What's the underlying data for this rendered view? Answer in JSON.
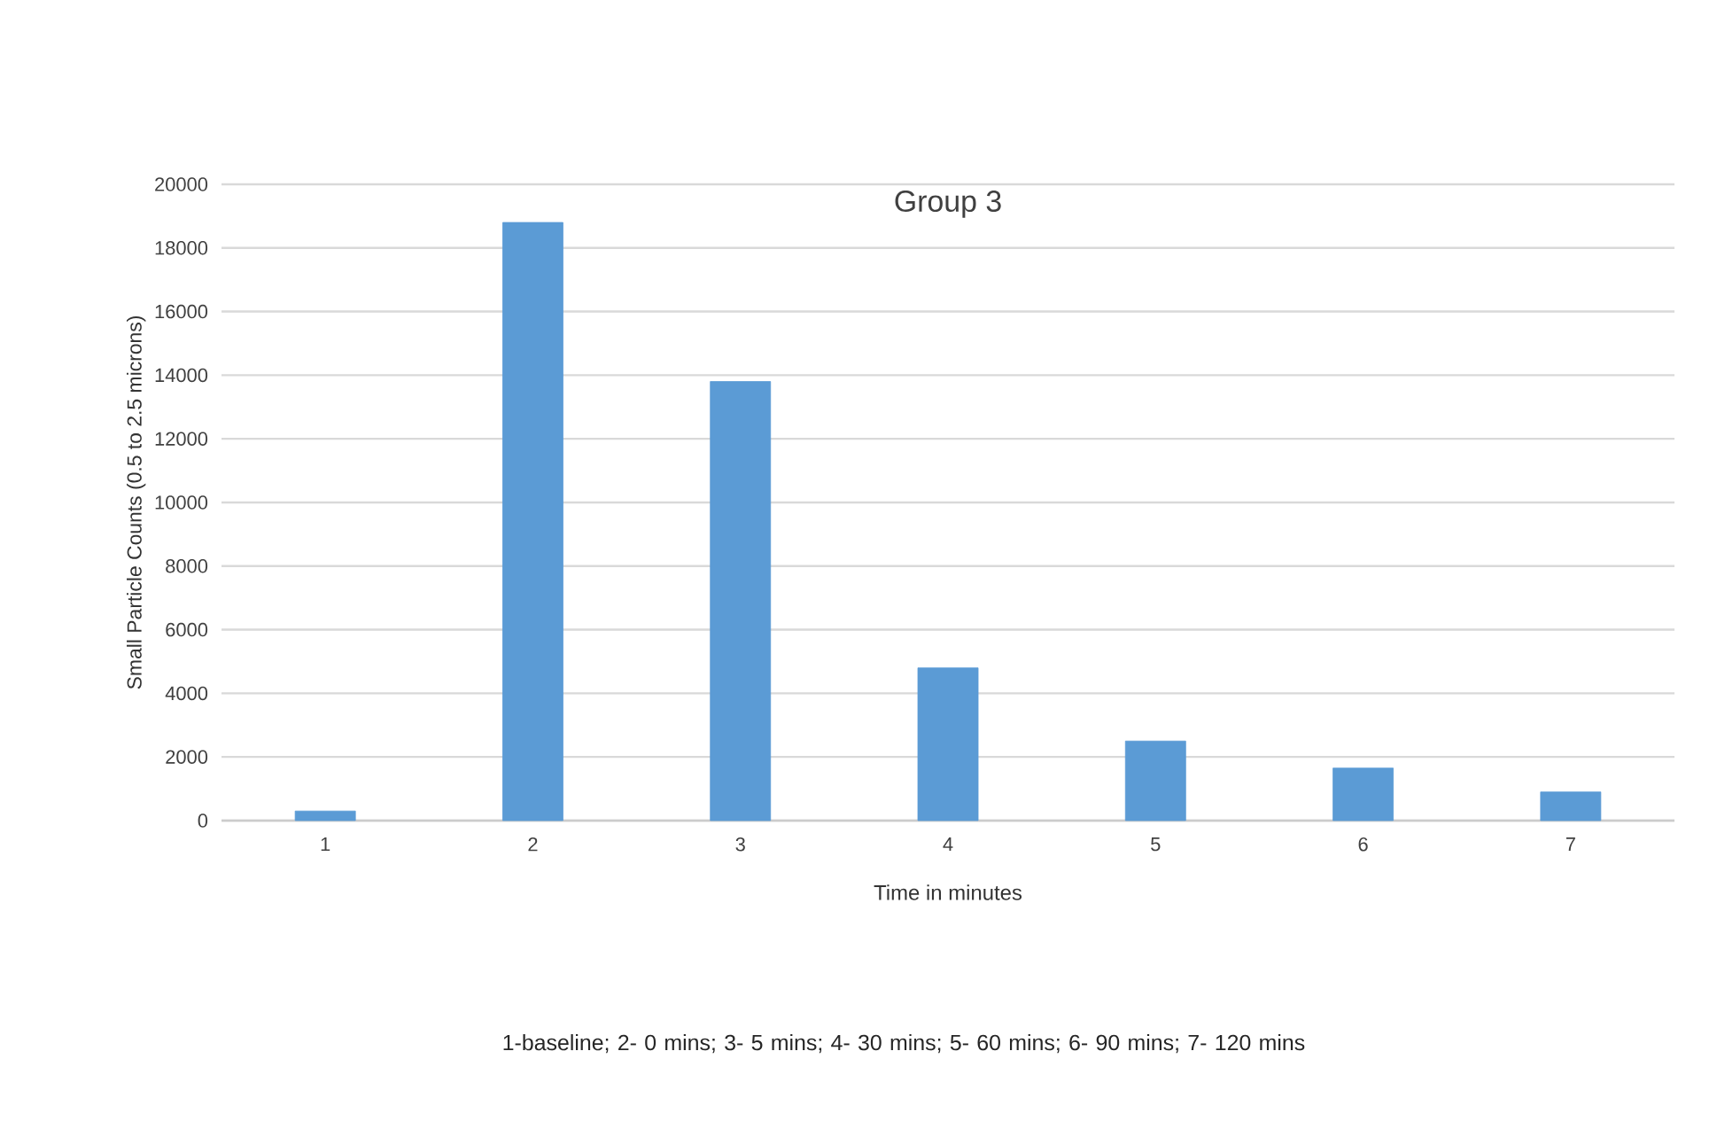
{
  "chart_data": {
    "type": "bar",
    "title": "Group 3",
    "xlabel": "Time in minutes",
    "ylabel": "Small Particle Counts (0.5 to 2.5 microns)",
    "categories": [
      "1",
      "2",
      "3",
      "4",
      "5",
      "6",
      "7"
    ],
    "values": [
      300,
      18800,
      13800,
      4800,
      2500,
      1650,
      900
    ],
    "color": "#5b9bd5",
    "ylim": [
      0,
      20000
    ],
    "yticks": [
      0,
      2000,
      4000,
      6000,
      8000,
      10000,
      12000,
      14000,
      16000,
      18000,
      20000
    ],
    "grid": "y",
    "annotations": [
      "1-baseline; 2- 0 mins; 3- 5 mins; 4- 30 mins; 5- 60 mins; 6- 90 mins; 7- 120 mins"
    ]
  }
}
